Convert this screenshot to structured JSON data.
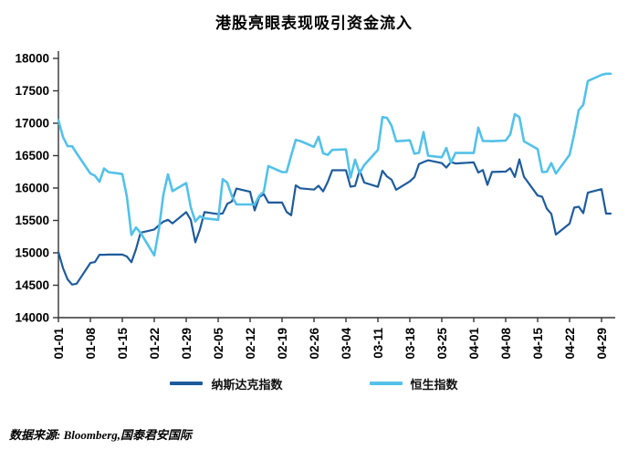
{
  "chart_data": {
    "type": "line",
    "title": "港股亮眼表现吸引资金流入",
    "xlabel": "",
    "ylabel": "",
    "ylim": [
      14000,
      18000
    ],
    "y_ticks": [
      14000,
      14500,
      15000,
      15500,
      16000,
      16500,
      17000,
      17500,
      18000
    ],
    "grid": false,
    "legend_position": "bottom",
    "x_max": 122,
    "x_tick_labels": [
      {
        "day": 0,
        "label": "01-01"
      },
      {
        "day": 7,
        "label": "01-08"
      },
      {
        "day": 14,
        "label": "01-15"
      },
      {
        "day": 21,
        "label": "01-22"
      },
      {
        "day": 28,
        "label": "01-29"
      },
      {
        "day": 35,
        "label": "02-05"
      },
      {
        "day": 42,
        "label": "02-12"
      },
      {
        "day": 49,
        "label": "02-19"
      },
      {
        "day": 56,
        "label": "02-26"
      },
      {
        "day": 63,
        "label": "03-04"
      },
      {
        "day": 70,
        "label": "03-11"
      },
      {
        "day": 77,
        "label": "03-18"
      },
      {
        "day": 84,
        "label": "03-25"
      },
      {
        "day": 91,
        "label": "04-01"
      },
      {
        "day": 98,
        "label": "04-08"
      },
      {
        "day": 105,
        "label": "04-15"
      },
      {
        "day": 112,
        "label": "04-22"
      },
      {
        "day": 119,
        "label": "04-29"
      }
    ],
    "x_days": [
      0,
      1,
      2,
      3,
      4,
      7,
      8,
      9,
      10,
      11,
      14,
      15,
      16,
      17,
      18,
      21,
      22,
      23,
      24,
      25,
      28,
      29,
      30,
      31,
      32,
      35,
      36,
      37,
      38,
      39,
      42,
      43,
      44,
      45,
      46,
      49,
      50,
      51,
      52,
      53,
      56,
      57,
      58,
      59,
      60,
      63,
      64,
      65,
      66,
      67,
      70,
      71,
      72,
      73,
      74,
      77,
      78,
      79,
      80,
      81,
      84,
      85,
      86,
      87,
      91,
      92,
      93,
      94,
      95,
      98,
      99,
      100,
      101,
      102,
      105,
      106,
      107,
      108,
      109,
      112,
      113,
      114,
      115,
      116,
      119,
      120,
      121
    ],
    "series": [
      {
        "name": "纳斯达克指数",
        "color": "#1e5b9c",
        "values": [
          15011,
          14766,
          14592,
          14510,
          14524,
          14843,
          14858,
          14970,
          14970,
          14973,
          14973,
          14944,
          14855,
          15056,
          15311,
          15360,
          15426,
          15482,
          15510,
          15455,
          15628,
          15510,
          15164,
          15361,
          15629,
          15597,
          15609,
          15756,
          15793,
          15991,
          15942,
          15655,
          15859,
          15906,
          15776,
          15776,
          15631,
          15580,
          16041,
          15996,
          15976,
          16035,
          15948,
          16092,
          16275,
          16274,
          16020,
          16032,
          16273,
          16085,
          16019,
          16266,
          16177,
          16128,
          15973,
          16103,
          16167,
          16369,
          16401,
          16428,
          16384,
          16316,
          16400,
          16379,
          16396,
          16240,
          16277,
          16049,
          16248,
          16254,
          16306,
          16170,
          16442,
          16175,
          15885,
          15865,
          15683,
          15601,
          15282,
          15451,
          15697,
          15713,
          15612,
          15928,
          15983,
          15605,
          15606
        ]
      },
      {
        "name": "恒生指数",
        "color": "#53c1e9",
        "values": [
          17047,
          16788,
          16646,
          16645,
          16535,
          16224,
          16190,
          16097,
          16302,
          16245,
          16216,
          15866,
          15277,
          15392,
          15309,
          14961,
          15354,
          15899,
          16211,
          15952,
          16078,
          15703,
          15485,
          15566,
          15533,
          15510,
          16136,
          16081,
          15878,
          15747,
          15747,
          15747,
          15879,
          15944,
          16340,
          16247,
          16248,
          16503,
          16743,
          16726,
          16635,
          16791,
          16537,
          16511,
          16589,
          16596,
          16162,
          16438,
          16230,
          16353,
          16588,
          17094,
          17082,
          16961,
          16721,
          16737,
          16529,
          16543,
          16863,
          16499,
          16474,
          16619,
          16393,
          16541,
          16541,
          16932,
          16725,
          16725,
          16723,
          16732,
          16828,
          17139,
          17095,
          16721,
          16600,
          16248,
          16251,
          16385,
          16224,
          16512,
          16829,
          17201,
          17285,
          17651,
          17747,
          17763,
          17763
        ]
      }
    ]
  },
  "footer": {
    "source": "数据来源: Bloomberg,国泰君安国际"
  },
  "colors": {
    "axis": "#333333",
    "tick_label": "#000000"
  }
}
